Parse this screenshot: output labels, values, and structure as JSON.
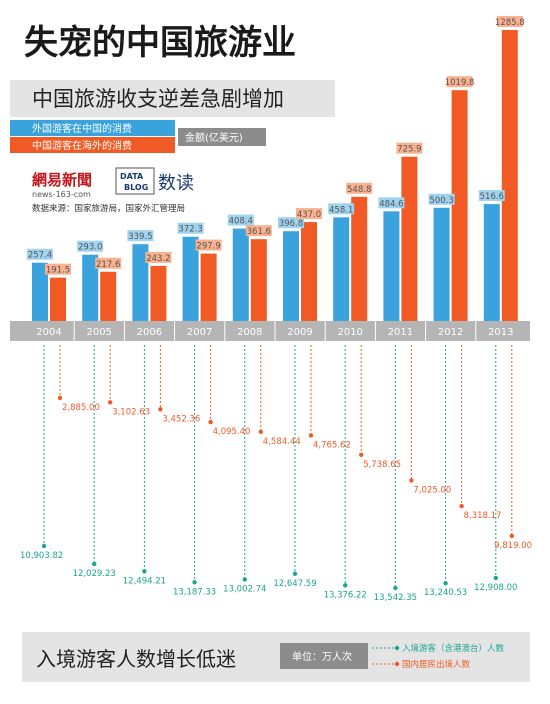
{
  "header": {
    "title": "失宠的中国旅游业",
    "subtitle": "中国旅游收支逆差急剧增加",
    "legend_inbound_spend": "外国游客在中国的消费",
    "legend_outbound_spend": "中国游客在海外的消费",
    "unit_spend": "金额(亿美元)",
    "brand_netease_cn": "網易新聞",
    "brand_netease_url": "news-163-com",
    "brand_datablog_1": "DATA",
    "brand_datablog_2": "BLOG",
    "brand_datablog_cn": "数读",
    "source": "数据来源：国家旅游局，国家外汇管理局"
  },
  "footer": {
    "title": "入境游客人数增长低迷",
    "unit": "单位：万人次",
    "legend_inbound_visitors": "入境游客（含港澳台）人数",
    "legend_outbound_visitors": "国内居民出境人数"
  },
  "colors": {
    "inbound": "#3aa3de",
    "outbound": "#f15a24",
    "inbound_label_bg": "#9fd3ef",
    "outbound_label_bg": "#f9b18f",
    "year_band": "#b5b5b5",
    "panel_bg": "#f0f0f0",
    "title_band": "#e4e4e4"
  },
  "chart_data": [
    {
      "type": "bar",
      "categories": [
        "2004",
        "2005",
        "2006",
        "2007",
        "2008",
        "2009",
        "2010",
        "2011",
        "2012",
        "2013"
      ],
      "series": [
        {
          "name": "外国游客在中国的消费",
          "values": [
            257.4,
            293.0,
            339.5,
            372.3,
            408.4,
            396.8,
            458.1,
            484.6,
            500.3,
            516.6
          ],
          "labels": [
            "257.4",
            "293.0",
            "339.5",
            "372.3",
            "408.4",
            "396.8",
            "458.1",
            "484.6",
            "500.3",
            "516.6"
          ]
        },
        {
          "name": "中国游客在海外的消费",
          "values": [
            191.5,
            217.6,
            243.2,
            297.9,
            361.6,
            437.0,
            548.8,
            725.9,
            1019.8,
            1285.8
          ],
          "labels": [
            "191.5",
            "217.6",
            "243.2",
            "297.9",
            "361.6",
            "437.0",
            "548.8",
            "725.9",
            "1019.8",
            "1285.8"
          ]
        }
      ],
      "ylabel": "金额(亿美元)"
    },
    {
      "type": "scatter",
      "categories": [
        "2004",
        "2005",
        "2006",
        "2007",
        "2008",
        "2009",
        "2010",
        "2011",
        "2012",
        "2013"
      ],
      "series": [
        {
          "name": "入境游客（含港澳台）人数",
          "values": [
            10903.82,
            12029.23,
            12494.21,
            13187.33,
            13002.74,
            12647.59,
            13376.22,
            13542.35,
            13240.53,
            12908.0
          ],
          "labels": [
            "10,903.82",
            "12,029.23",
            "12,494.21",
            "13,187.33",
            "13,002.74",
            "12,647.59",
            "13,376.22",
            "13,542.35",
            "13,240.53",
            "12,908.00"
          ]
        },
        {
          "name": "国内居民出境人数",
          "values": [
            2885.0,
            3102.63,
            3452.36,
            4095.4,
            4584.44,
            4765.62,
            5738.65,
            7025.0,
            8318.17,
            9819.0
          ],
          "labels": [
            "2,885.00",
            "3,102.63",
            "3,452.36",
            "4,095.40",
            "4,584.44",
            "4,765.62",
            "5,738.65",
            "7,025.00",
            "8,318.17",
            "9,819.00"
          ]
        }
      ],
      "ylabel": "万人次"
    }
  ]
}
